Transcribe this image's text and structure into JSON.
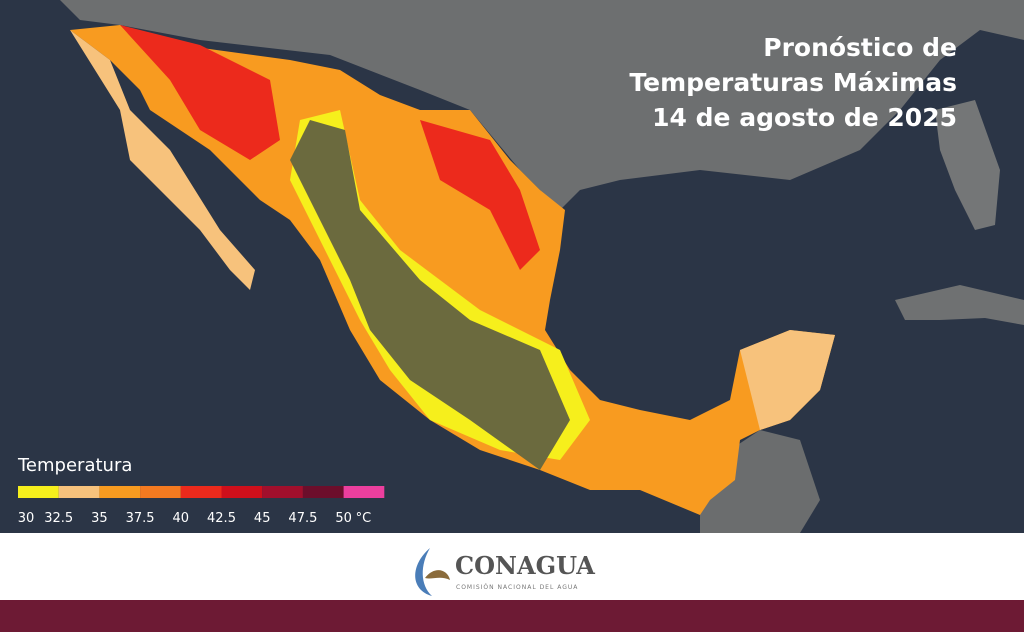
{
  "header": {
    "title_lines": [
      "Pronóstico de",
      "Temperaturas Máximas",
      "14 de agosto de 2025"
    ]
  },
  "legend": {
    "title": "Temperatura",
    "labels": [
      "30",
      "32.5",
      "35",
      "37.5",
      "40",
      "42.5",
      "45",
      "47.5",
      "50"
    ],
    "unit": "°C",
    "colors": [
      "#f6ef1c",
      "#f7c27c",
      "#f89b20",
      "#f47a20",
      "#ec2a1c",
      "#cf0f1b",
      "#a10f2c",
      "#6c0e2b",
      "#ec3f9e"
    ]
  },
  "footer": {
    "logo": "CONAGUA",
    "subtitle": "COMISIÓN NACIONAL DEL AGUA"
  }
}
